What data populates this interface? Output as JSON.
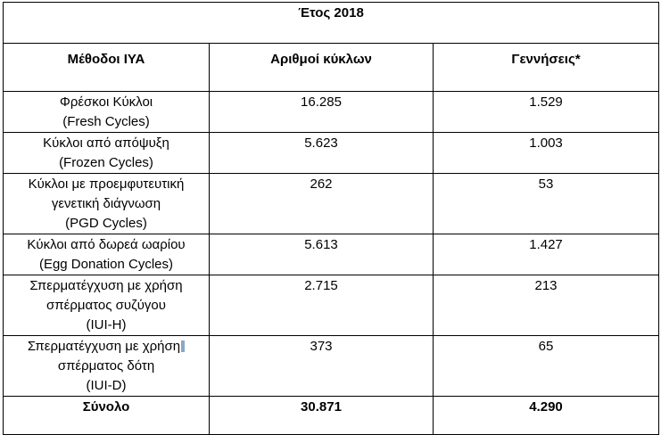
{
  "table": {
    "year_header": "Έτος 2018",
    "columns": [
      "Μέθοδοι ΙΥΑ",
      "Αριθμοί κύκλων",
      "Γεννήσεις*"
    ],
    "rows": [
      {
        "method": [
          "Φρέσκοι Κύκλοι",
          "(Fresh Cycles)"
        ],
        "cycles": "16.285",
        "births": "1.529"
      },
      {
        "method": [
          "Κύκλοι από απόψυξη",
          "(Frozen Cycles)"
        ],
        "cycles": "5.623",
        "births": "1.003"
      },
      {
        "method": [
          "Κύκλοι με προεμφυτευτική",
          "γενετική διάγνωση",
          "(PGD Cycles)"
        ],
        "cycles": "262",
        "births": "53"
      },
      {
        "method": [
          "Κύκλοι από δωρεά ωαρίου",
          "(Egg Donation Cycles)"
        ],
        "cycles": "5.613",
        "births": "1.427"
      },
      {
        "method": [
          "Σπερματέγχυση με χρήση",
          "σπέρματος συζύγου",
          "(IUI-H)"
        ],
        "cycles": "2.715",
        "births": "213"
      },
      {
        "method": [
          "Σπερματέγχυση με χρήση",
          "σπέρματος δότη",
          "(IUI-D)"
        ],
        "cycles": "373",
        "births": "65"
      }
    ],
    "total": {
      "label": "Σύνολο",
      "cycles": "30.871",
      "births": "4.290"
    }
  }
}
